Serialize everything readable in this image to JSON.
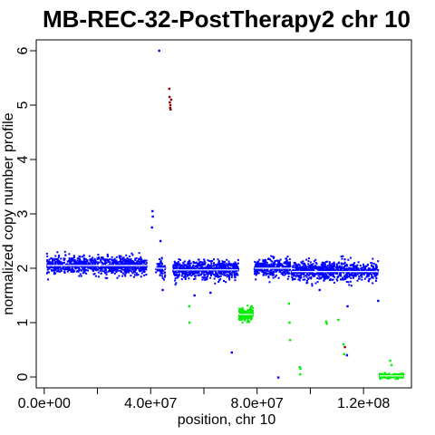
{
  "chart_data": {
    "type": "scatter",
    "title": "MB-REC-32-PostTherapy2 chr 10",
    "xlabel": "position, chr 10",
    "ylabel": "normalized copy number profile",
    "xlim": [
      -3000000,
      138000000
    ],
    "ylim": [
      -0.2,
      6.2
    ],
    "x_ticks": [
      0,
      20000000,
      40000000,
      60000000,
      80000000,
      100000000,
      120000000
    ],
    "x_tick_labels": [
      "0.0e+00",
      "",
      "4.0e+07",
      "",
      "8.0e+07",
      "",
      "1.2e+08"
    ],
    "y_ticks": [
      0,
      1,
      2,
      3,
      4,
      5,
      6
    ],
    "y_tick_labels": [
      "0",
      "1",
      "2",
      "3",
      "4",
      "5",
      "6"
    ],
    "grid": false,
    "legend": "none",
    "colors": {
      "neutral": "#0000ff",
      "loss": "#00ee00",
      "gain": "#8b0000",
      "segment": "#ffffff"
    },
    "dense_regions": [
      {
        "status": "neutral",
        "x_start": 1000000,
        "x_end": 38500000,
        "y_center": 2.05,
        "y_spread": 0.16,
        "count": 900
      },
      {
        "status": "neutral",
        "x_start": 42000000,
        "x_end": 45500000,
        "y_center": 2.0,
        "y_spread": 0.16,
        "count": 60
      },
      {
        "status": "neutral",
        "x_start": 48500000,
        "x_end": 73000000,
        "y_center": 1.97,
        "y_spread": 0.17,
        "count": 600
      },
      {
        "status": "loss",
        "x_start": 73200000,
        "x_end": 78500000,
        "y_center": 1.15,
        "y_spread": 0.12,
        "count": 180
      },
      {
        "status": "neutral",
        "x_start": 79000000,
        "x_end": 92500000,
        "y_center": 2.0,
        "y_spread": 0.17,
        "count": 350
      },
      {
        "status": "neutral",
        "x_start": 93000000,
        "x_end": 125500000,
        "y_center": 1.95,
        "y_spread": 0.17,
        "count": 800
      },
      {
        "status": "loss",
        "x_start": 126000000,
        "x_end": 135000000,
        "y_center": 0.02,
        "y_spread": 0.05,
        "count": 150
      }
    ],
    "outliers": [
      {
        "x": 40500000,
        "y": 2.75,
        "status": "neutral"
      },
      {
        "x": 40700000,
        "y": 3.05,
        "status": "neutral"
      },
      {
        "x": 40800000,
        "y": 2.95,
        "status": "neutral"
      },
      {
        "x": 43200000,
        "y": 6.0,
        "status": "neutral"
      },
      {
        "x": 43700000,
        "y": 2.5,
        "status": "neutral"
      },
      {
        "x": 44500000,
        "y": 1.6,
        "status": "neutral"
      },
      {
        "x": 47000000,
        "y": 5.3,
        "status": "gain"
      },
      {
        "x": 47100000,
        "y": 5.15,
        "status": "gain"
      },
      {
        "x": 47200000,
        "y": 5.05,
        "status": "gain"
      },
      {
        "x": 47300000,
        "y": 4.95,
        "status": "gain"
      },
      {
        "x": 47400000,
        "y": 5.0,
        "status": "gain"
      },
      {
        "x": 47500000,
        "y": 4.92,
        "status": "gain"
      },
      {
        "x": 47700000,
        "y": 5.1,
        "status": "gain"
      },
      {
        "x": 54500000,
        "y": 1.3,
        "status": "loss"
      },
      {
        "x": 54600000,
        "y": 1.0,
        "status": "loss"
      },
      {
        "x": 56500000,
        "y": 1.5,
        "status": "neutral"
      },
      {
        "x": 62500000,
        "y": 1.55,
        "status": "neutral"
      },
      {
        "x": 70500000,
        "y": 0.45,
        "status": "neutral"
      },
      {
        "x": 88000000,
        "y": -0.01,
        "status": "neutral"
      },
      {
        "x": 92000000,
        "y": 1.35,
        "status": "loss"
      },
      {
        "x": 92200000,
        "y": 1.0,
        "status": "loss"
      },
      {
        "x": 92400000,
        "y": 0.68,
        "status": "loss"
      },
      {
        "x": 96000000,
        "y": 0.18,
        "status": "loss"
      },
      {
        "x": 96200000,
        "y": 0.05,
        "status": "loss"
      },
      {
        "x": 96300000,
        "y": 0.15,
        "status": "loss"
      },
      {
        "x": 103500000,
        "y": 1.6,
        "status": "neutral"
      },
      {
        "x": 106000000,
        "y": 1.02,
        "status": "loss"
      },
      {
        "x": 106200000,
        "y": 0.98,
        "status": "loss"
      },
      {
        "x": 110500000,
        "y": 1.05,
        "status": "loss"
      },
      {
        "x": 112500000,
        "y": 0.6,
        "status": "loss"
      },
      {
        "x": 112700000,
        "y": 0.42,
        "status": "loss"
      },
      {
        "x": 113000000,
        "y": 0.55,
        "status": "gain"
      },
      {
        "x": 114000000,
        "y": 1.3,
        "status": "neutral"
      },
      {
        "x": 113800000,
        "y": 0.4,
        "status": "neutral"
      },
      {
        "x": 125500000,
        "y": 1.4,
        "status": "neutral"
      },
      {
        "x": 130000000,
        "y": 0.3,
        "status": "loss"
      },
      {
        "x": 130500000,
        "y": 0.22,
        "status": "loss"
      }
    ],
    "segments": [
      {
        "x_start": 1000000,
        "x_end": 38500000,
        "y": 2.05
      },
      {
        "x_start": 42000000,
        "x_end": 45500000,
        "y": 2.0
      },
      {
        "x_start": 48500000,
        "x_end": 73000000,
        "y": 1.97
      },
      {
        "x_start": 73200000,
        "x_end": 78500000,
        "y": 1.15
      },
      {
        "x_start": 79000000,
        "x_end": 92500000,
        "y": 2.0
      },
      {
        "x_start": 93000000,
        "x_end": 125500000,
        "y": 1.94
      },
      {
        "x_start": 126000000,
        "x_end": 135000000,
        "y": 0.02
      }
    ]
  }
}
